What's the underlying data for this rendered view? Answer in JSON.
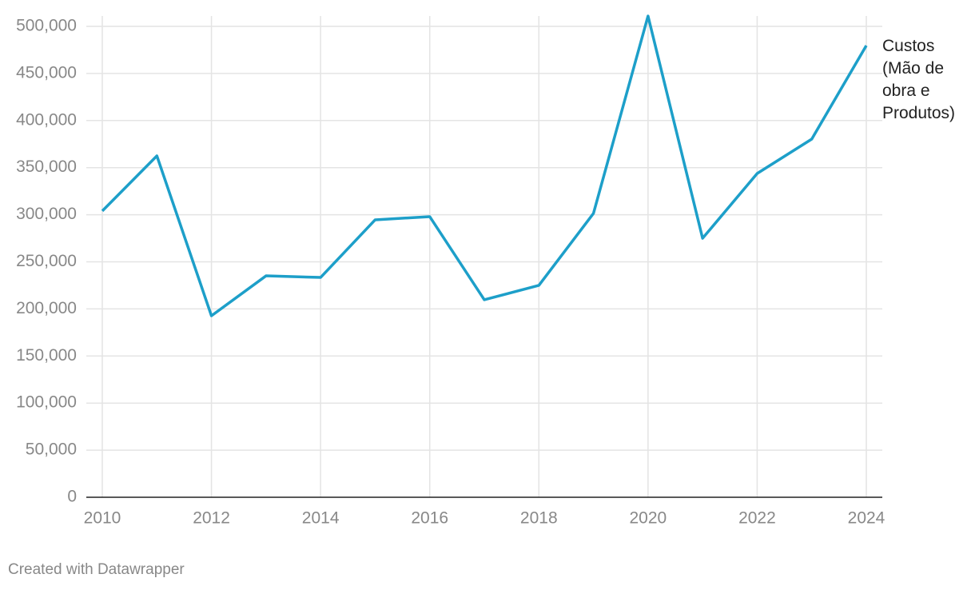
{
  "chart_data": {
    "type": "line",
    "x": [
      2010,
      2011,
      2012,
      2013,
      2014,
      2015,
      2016,
      2017,
      2018,
      2019,
      2020,
      2021,
      2022,
      2023,
      2024
    ],
    "series": [
      {
        "name": "Custos (Mão de obra e Produtos)",
        "color": "#1d9fc9",
        "values": [
          304000,
          362500,
          192700,
          235100,
          233400,
          294600,
          298000,
          209700,
          225000,
          301400,
          511000,
          275000,
          343800,
          380300,
          479600
        ]
      }
    ],
    "xlim": [
      2010,
      2024
    ],
    "xticks": [
      2010,
      2012,
      2014,
      2016,
      2018,
      2020,
      2022,
      2024
    ],
    "ylim": [
      0,
      500000
    ],
    "yticks": [
      0,
      {
        "value": 50000,
        "label": "50,000"
      },
      {
        "value": 100000,
        "label": "100,000"
      },
      {
        "value": 150000,
        "label": "150,000"
      },
      {
        "value": 200000,
        "label": "200,000"
      },
      {
        "value": 250000,
        "label": "250,000"
      },
      {
        "value": 300000,
        "label": "300,000"
      },
      {
        "value": 350000,
        "label": "350,000"
      },
      {
        "value": 400000,
        "label": "400,000"
      },
      {
        "value": 450000,
        "label": "450,000"
      },
      {
        "value": 500000,
        "label": "500,000"
      }
    ],
    "grid": true,
    "credit": "Created with Datawrapper"
  }
}
